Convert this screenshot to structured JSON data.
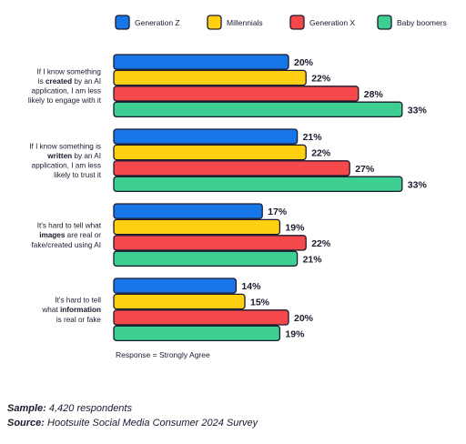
{
  "chart_data": {
    "type": "bar",
    "orientation": "horizontal",
    "legend_position": "top",
    "categories": [
      [
        {
          "t": "If I know something",
          "b": false
        },
        {
          "t": "is ",
          "b": false
        },
        {
          "t": "created",
          "b": true
        },
        {
          "t": " by an AI",
          "b": false
        },
        {
          "t": "application, I am less",
          "b": false
        },
        {
          "t": "likely to engage with it",
          "b": false
        }
      ],
      [
        {
          "t": "If I know something is",
          "b": false
        },
        {
          "t": "written",
          "b": true
        },
        {
          "t": " by an AI",
          "b": false
        },
        {
          "t": "application, I am less",
          "b": false
        },
        {
          "t": "likely to trust it",
          "b": false
        }
      ],
      [
        {
          "t": "It's hard to tell what",
          "b": false
        },
        {
          "t": "images",
          "b": true
        },
        {
          "t": " are real or",
          "b": false
        },
        {
          "t": "fake/created using AI",
          "b": false
        }
      ],
      [
        {
          "t": "It's hard to tell",
          "b": false
        },
        {
          "t": "what ",
          "b": false
        },
        {
          "t": "information",
          "b": true
        },
        {
          "t": "is real or fake",
          "b": false
        }
      ]
    ],
    "category_lines": [
      [
        [
          0
        ],
        [
          1,
          2,
          3
        ],
        [
          4
        ],
        [
          5
        ]
      ],
      [
        [
          0
        ],
        [
          1,
          2
        ],
        [
          3
        ],
        [
          4
        ]
      ],
      [
        [
          0
        ],
        [
          1,
          2
        ],
        [
          3
        ]
      ],
      [
        [
          0
        ],
        [
          1,
          2
        ],
        [
          3
        ]
      ]
    ],
    "series": [
      {
        "name": "Generation Z",
        "color": "#1877e8",
        "values": [
          20,
          21,
          17,
          14
        ]
      },
      {
        "name": "Millennials",
        "color": "#ffd012",
        "values": [
          22,
          22,
          19,
          15
        ]
      },
      {
        "name": "Generation X",
        "color": "#f5484a",
        "values": [
          28,
          27,
          22,
          20
        ]
      },
      {
        "name": "Baby boomers",
        "color": "#3ccf91",
        "values": [
          33,
          33,
          21,
          19
        ]
      }
    ],
    "value_suffix": "%",
    "xlim": [
      0,
      40
    ],
    "note": "Response = Strongly Agree"
  },
  "footer": {
    "sample_label": "Sample:",
    "sample_value": "4,420 respondents",
    "source_label": "Source:",
    "source_value": "Hootsuite Social Media Consumer 2024 Survey"
  }
}
